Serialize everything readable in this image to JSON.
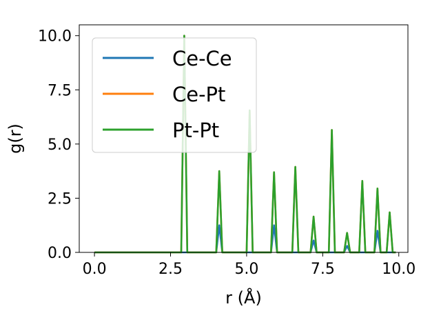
{
  "chart_data": {
    "type": "line",
    "xlabel": "r (Å)",
    "ylabel": "g(r)",
    "xlim": [
      -0.5,
      10.3
    ],
    "ylim": [
      0,
      10.5
    ],
    "xticks": [
      "0.0",
      "2.5",
      "5.0",
      "7.5",
      "10.0"
    ],
    "yticks": [
      "0.0",
      "2.5",
      "5.0",
      "7.5",
      "10.0"
    ],
    "grid": false,
    "legend_position": "upper-left",
    "peak_half_width": 0.1,
    "series": [
      {
        "name": "Ce-Ce",
        "color": "#1f77b4",
        "peaks": [
          [
            4.1,
            1.25
          ],
          [
            5.9,
            1.25
          ],
          [
            7.2,
            0.55
          ],
          [
            8.3,
            0.3
          ],
          [
            9.3,
            1.0
          ]
        ]
      },
      {
        "name": "Ce-Pt",
        "color": "#ff7f0e",
        "peaks": [
          [
            2.95,
            10.0
          ],
          [
            4.1,
            3.75
          ],
          [
            5.1,
            6.55
          ],
          [
            5.9,
            3.7
          ],
          [
            6.6,
            3.95
          ],
          [
            7.2,
            1.65
          ],
          [
            7.8,
            5.65
          ],
          [
            8.3,
            0.9
          ],
          [
            8.8,
            3.3
          ],
          [
            9.3,
            2.95
          ],
          [
            9.7,
            1.85
          ]
        ]
      },
      {
        "name": "Pt-Pt",
        "color": "#2ca02c",
        "peaks": [
          [
            2.95,
            10.0
          ],
          [
            4.1,
            3.75
          ],
          [
            5.1,
            6.55
          ],
          [
            5.9,
            3.7
          ],
          [
            6.6,
            3.95
          ],
          [
            7.2,
            1.65
          ],
          [
            7.8,
            5.65
          ],
          [
            8.3,
            0.9
          ],
          [
            8.8,
            3.3
          ],
          [
            9.3,
            2.95
          ],
          [
            9.7,
            1.85
          ]
        ]
      }
    ],
    "x_start": 0.0,
    "x_end": 9.9
  }
}
